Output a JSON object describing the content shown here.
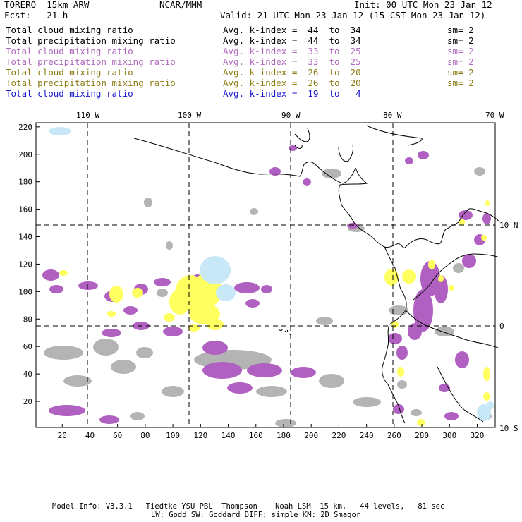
{
  "header": {
    "model": "TORERO  15km ARW",
    "org": "NCAR/MMM",
    "init": "Init: 00 UTC Mon 23 Jan 12",
    "fcst": "Fcst:   21 h",
    "valid": "Valid: 21 UTC Mon 23 Jan 12 (15 CST Mon 23 Jan 12)"
  },
  "legend": [
    {
      "field": "Total cloud mixing ratio",
      "index": "Avg. k-index =  44  to  34",
      "sm": "sm= 2",
      "color": "#000000"
    },
    {
      "field": "Total precipitation mixing ratio",
      "index": "Avg. k-index =  44  to  34",
      "sm": "sm= 2",
      "color": "#000000"
    },
    {
      "field": "Total cloud mixing ratio",
      "index": "Avg. k-index =  33  to  25",
      "sm": "sm= 2",
      "color": "#b06abd"
    },
    {
      "field": "Total precipitation mixing ratio",
      "index": "Avg. k-index =  33  to  25",
      "sm": "sm= 2",
      "color": "#b06abd"
    },
    {
      "field": "Total cloud mixing ratio",
      "index": "Avg. k-index =  26  to  20",
      "sm": "sm= 2",
      "color": "#8b7c14"
    },
    {
      "field": "Total precipitation mixing ratio",
      "index": "Avg. k-index =  26  to  20",
      "sm": "sm= 2",
      "color": "#8b7c14"
    },
    {
      "field": "Total cloud mixing ratio",
      "index": "Avg. k-index =  19  to   4",
      "sm": "",
      "color": "#1a1acc"
    }
  ],
  "map": {
    "lon_labels": [
      "110 W",
      "100 W",
      "90 W",
      "80 W",
      "70 W"
    ],
    "lat_labels": [
      "10 N",
      "0",
      "10 S"
    ],
    "x_ticks": [
      20,
      40,
      60,
      80,
      100,
      120,
      140,
      160,
      180,
      200,
      220,
      240,
      260,
      280,
      300,
      320
    ],
    "y_ticks": [
      20,
      40,
      60,
      80,
      100,
      120,
      140,
      160,
      180,
      200,
      220
    ],
    "x_range": [
      1,
      333
    ],
    "y_range": [
      1,
      223
    ],
    "fill_colors": {
      "gray": "#b4b4b4",
      "purple": "#b060c0",
      "yellow": "#ffff60",
      "light_blue": "#c8e8f8"
    }
  },
  "footer": {
    "line1": "Model Info: V3.3.1   Tiedtke YSU PBL  Thompson    Noah LSM  15 km,   44 levels,   81 sec",
    "line2": "LW: Godd SW: Goddard DIFF: simple KM: 2D Smagor"
  }
}
